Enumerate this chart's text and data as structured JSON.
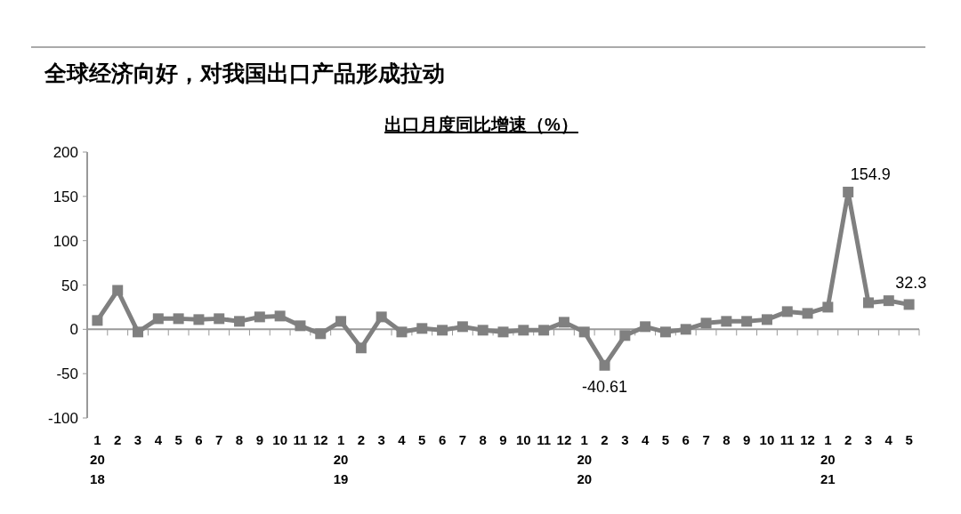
{
  "chart_data": {
    "type": "line",
    "title": "全球经济向好，对我国出口产品形成拉动",
    "subtitle": "出口月度同比增速（%）",
    "categories": [
      "1\n20\n18",
      "2",
      "3",
      "4",
      "5",
      "6",
      "7",
      "8",
      "9",
      "10",
      "11",
      "12",
      "1\n20\n19",
      "2",
      "3",
      "4",
      "5",
      "6",
      "7",
      "8",
      "9",
      "10",
      "11",
      "12",
      "1\n20\n20",
      "2",
      "3",
      "4",
      "5",
      "6",
      "7",
      "8",
      "9",
      "10",
      "11",
      "12",
      "1\n20\n21",
      "2",
      "3",
      "4",
      "5"
    ],
    "series": [
      {
        "color": "#808080",
        "values": [
          10,
          44,
          -3,
          12,
          12,
          11,
          12,
          9,
          14,
          15,
          4,
          -5,
          9,
          -21,
          14,
          -3,
          1,
          -1,
          3,
          -1,
          -3,
          -1,
          -1,
          8,
          -3,
          -40.61,
          -7,
          3,
          -3,
          0,
          7,
          9,
          9,
          11,
          20,
          18,
          25,
          154.9,
          30,
          32.3,
          28
        ],
        "value_labels": [
          null,
          null,
          null,
          null,
          null,
          null,
          null,
          null,
          null,
          null,
          null,
          null,
          null,
          null,
          null,
          null,
          null,
          null,
          null,
          null,
          null,
          null,
          null,
          null,
          null,
          "-40.61",
          null,
          null,
          null,
          null,
          null,
          null,
          null,
          null,
          null,
          null,
          null,
          "154.9",
          null,
          "32.3",
          null
        ]
      }
    ],
    "ylim": [
      -100,
      200
    ],
    "yticks": [
      -100,
      -50,
      0,
      50,
      100,
      150,
      200
    ],
    "marker": "square",
    "line_style": "solid"
  }
}
